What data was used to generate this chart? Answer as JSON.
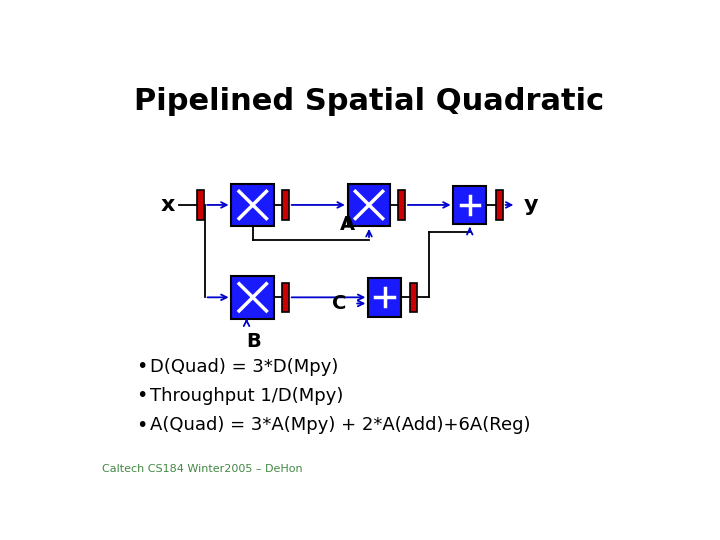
{
  "title": "Pipelined Spatial Quadratic",
  "title_fontsize": 22,
  "bg_color": "#ffffff",
  "blue_color": "#1a1aff",
  "red_color": "#cc0000",
  "bullet_points": [
    "D(Quad) = 3*D(Mpy)",
    "Throughput 1/D(Mpy)",
    "A(Quad) = 3*A(Mpy) + 2*A(Add)+6A(Reg)"
  ],
  "bullet_fontsize": 13,
  "footer_text": "Caltech CS184 Winter2005 – DeHon",
  "footer_fontsize": 8,
  "arrow_color": "#0000cc",
  "line_color": "#000000"
}
